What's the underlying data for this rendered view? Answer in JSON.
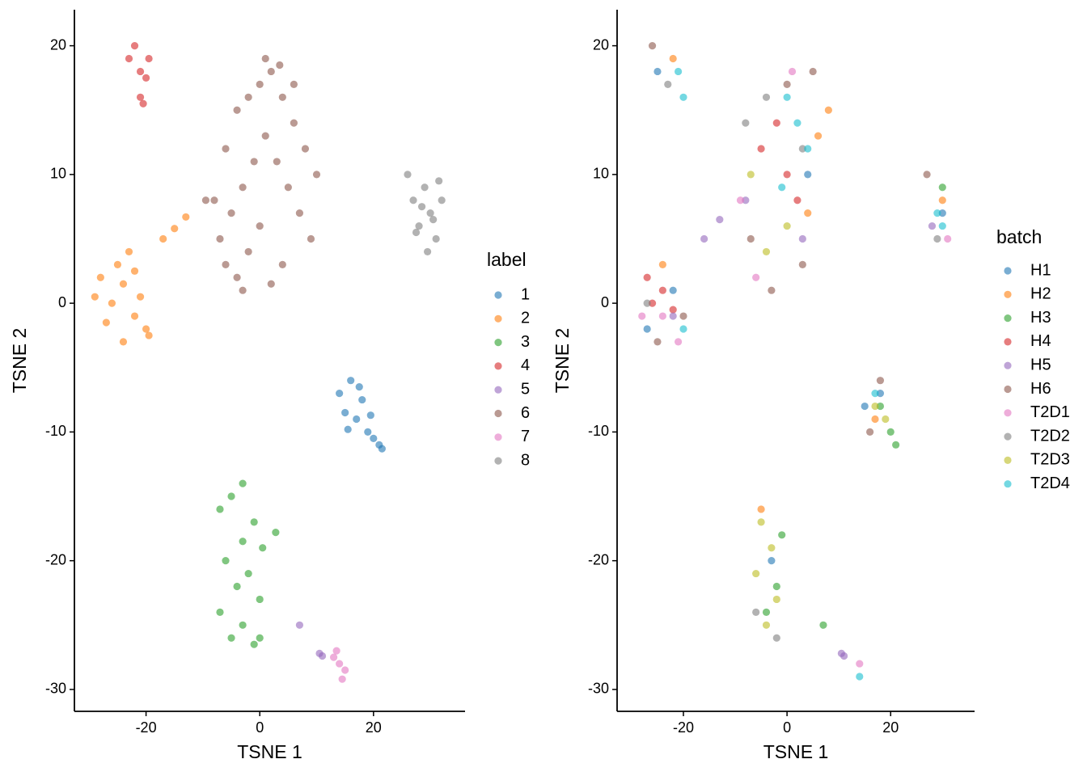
{
  "chart_data": [
    {
      "type": "scatter",
      "x_label": "TSNE 1",
      "y_label": "TSNE 2",
      "legend_title": "label",
      "xlim": [
        -32.6,
        36.1
      ],
      "ylim": [
        -31.7,
        22.8
      ],
      "xticks": [
        -20,
        0,
        20
      ],
      "yticks": [
        -30,
        -20,
        -10,
        0,
        10,
        20
      ],
      "series": [
        {
          "name": "1",
          "color": "#1f77b4",
          "x": [
            14,
            15,
            16,
            17,
            18,
            19,
            20,
            21,
            15.5,
            17.5,
            19.5,
            21.5
          ],
          "values": [
            -7,
            -8.5,
            -6,
            -9,
            -7.5,
            -10,
            -10.5,
            -11,
            -9.8,
            -6.5,
            -8.7,
            -11.3
          ]
        },
        {
          "name": "2",
          "color": "#ff7f0e",
          "x": [
            -28,
            -26,
            -24,
            -22,
            -20,
            -27,
            -25,
            -23,
            -21,
            -19.5,
            -29,
            -24,
            -22,
            -17,
            -15,
            -13
          ],
          "values": [
            2,
            0,
            1.5,
            -1,
            -2,
            -1.5,
            3,
            4,
            0.5,
            -2.5,
            0.5,
            -3,
            2.5,
            5,
            5.8,
            6.7
          ]
        },
        {
          "name": "3",
          "color": "#2ca02c",
          "x": [
            -7,
            -5,
            -3,
            -1,
            0.5,
            -6,
            -4,
            -2,
            0,
            -7,
            -5,
            -3,
            -1,
            0,
            -3,
            2.8
          ],
          "values": [
            -16,
            -15,
            -14,
            -17,
            -19,
            -20,
            -22,
            -21,
            -23,
            -24,
            -26,
            -25,
            -26.5,
            -26,
            -18.5,
            -17.8
          ]
        },
        {
          "name": "4",
          "color": "#d62728",
          "x": [
            -23,
            -22,
            -21,
            -20,
            -19.5,
            -21,
            -20.5
          ],
          "values": [
            19,
            20,
            18,
            17.5,
            19,
            16,
            15.5
          ]
        },
        {
          "name": "5",
          "color": "#9467bd",
          "x": [
            7,
            10.5,
            11
          ],
          "values": [
            -25,
            -27.2,
            -27.4
          ]
        },
        {
          "name": "6",
          "color": "#8c564b",
          "x": [
            -8,
            -6,
            -4,
            -2,
            0,
            2,
            4,
            6,
            8,
            10,
            -7,
            -5,
            -3,
            -1,
            1,
            3,
            5,
            7,
            9,
            -6,
            -4,
            -2,
            0,
            2,
            4,
            -9.5,
            6,
            -3,
            1,
            3.5
          ],
          "values": [
            8,
            12,
            15,
            16,
            17,
            18,
            16,
            14,
            12,
            10,
            5,
            7,
            9,
            11,
            13,
            11,
            9,
            7,
            5,
            3,
            2,
            4,
            6,
            1.5,
            3,
            8,
            17,
            1,
            19,
            18.5
          ]
        },
        {
          "name": "7",
          "color": "#e377c2",
          "x": [
            13,
            14,
            15,
            14.5,
            13.5
          ],
          "values": [
            -27.5,
            -28,
            -28.5,
            -29.2,
            -27
          ]
        },
        {
          "name": "8",
          "color": "#7f7f7f",
          "x": [
            26,
            27,
            28,
            29,
            30,
            31,
            32,
            27.5,
            29.5,
            31.5,
            28.5,
            30.5
          ],
          "values": [
            10,
            8,
            6,
            9,
            7,
            5,
            8,
            5.5,
            4,
            9.5,
            7.5,
            6.5
          ]
        }
      ]
    },
    {
      "type": "scatter",
      "x_label": "TSNE 1",
      "y_label": "TSNE 2",
      "legend_title": "batch",
      "xlim": [
        -32.8,
        36.2
      ],
      "ylim": [
        -31.7,
        22.8
      ],
      "xticks": [
        -20,
        0,
        20
      ],
      "yticks": [
        -30,
        -20,
        -10,
        0,
        10,
        20
      ],
      "series": [
        {
          "name": "H1",
          "color": "#1f77b4",
          "x": [
            -25,
            -22,
            -27,
            15,
            18,
            -3,
            4,
            30
          ],
          "values": [
            18,
            1,
            -2,
            -8,
            -7,
            -20,
            10,
            7
          ]
        },
        {
          "name": "H2",
          "color": "#ff7f0e",
          "x": [
            -22,
            8,
            6,
            -24,
            17,
            -5,
            30,
            4
          ],
          "values": [
            19,
            15,
            13,
            3,
            -9,
            -16,
            8,
            7
          ]
        },
        {
          "name": "H3",
          "color": "#2ca02c",
          "x": [
            20,
            21,
            18,
            -1,
            -2,
            30,
            -4,
            7
          ],
          "values": [
            -10,
            -11,
            -8,
            -18,
            -22,
            9,
            -24,
            -25
          ]
        },
        {
          "name": "H4",
          "color": "#d62728",
          "x": [
            -27,
            -24,
            -22,
            -5,
            0,
            2,
            -2,
            -26
          ],
          "values": [
            2,
            1,
            -0.5,
            12,
            10,
            8,
            14,
            0
          ]
        },
        {
          "name": "H5",
          "color": "#9467bd",
          "x": [
            -16,
            -13,
            10.5,
            11,
            -8,
            3,
            -22,
            28
          ],
          "values": [
            5,
            6.5,
            -27.2,
            -27.4,
            8,
            5,
            -1,
            6
          ]
        },
        {
          "name": "H6",
          "color": "#8c564b",
          "x": [
            -26,
            -25,
            -20,
            -7,
            0,
            5,
            3,
            16,
            18,
            27,
            -3
          ],
          "values": [
            20,
            -3,
            -1,
            5,
            17,
            18,
            3,
            -10,
            -6,
            10,
            1
          ]
        },
        {
          "name": "T2D1",
          "color": "#e377c2",
          "x": [
            -24,
            -9,
            1,
            -6,
            14,
            31,
            -21,
            -28
          ],
          "values": [
            -1,
            8,
            18,
            2,
            -28,
            5,
            -3,
            -1
          ]
        },
        {
          "name": "T2D2",
          "color": "#7f7f7f",
          "x": [
            -23,
            -8,
            -4,
            3,
            -6,
            -2,
            29,
            -27
          ],
          "values": [
            17,
            14,
            16,
            12,
            -24,
            -26,
            5,
            0
          ]
        },
        {
          "name": "T2D3",
          "color": "#bcbd22",
          "x": [
            -5,
            -3,
            -6,
            -2,
            -4,
            0,
            17,
            19,
            -4,
            -7
          ],
          "values": [
            -17,
            -19,
            -21,
            -23,
            -25,
            6,
            -8,
            -9,
            4,
            10
          ]
        },
        {
          "name": "T2D4",
          "color": "#17becf",
          "x": [
            -21,
            -20,
            0,
            2,
            4,
            -1,
            29,
            30,
            17,
            -20,
            14
          ],
          "values": [
            18,
            16,
            16,
            14,
            12,
            9,
            7,
            6,
            -7,
            -2,
            -29
          ]
        }
      ]
    }
  ]
}
